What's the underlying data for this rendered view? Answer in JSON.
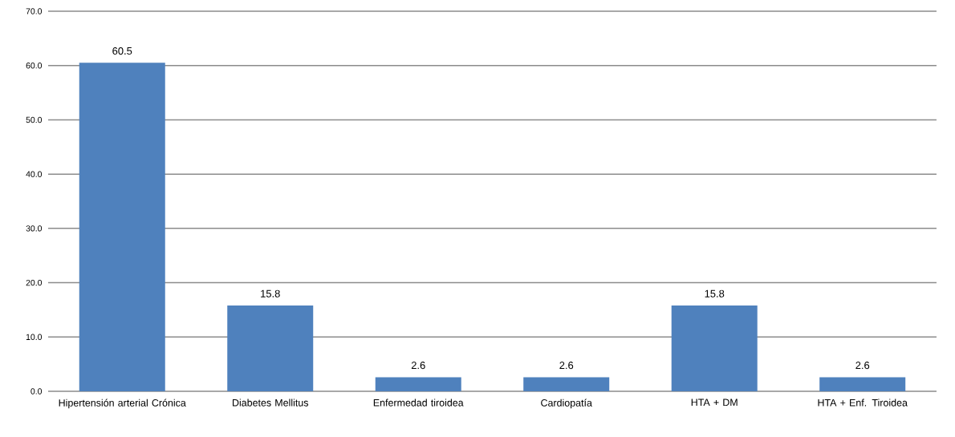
{
  "chart_data": {
    "type": "bar",
    "categories": [
      "Hipertensión arterial Crónica",
      "Diabetes Mellitus",
      "Enfermedad tiroidea",
      "Cardiopatía",
      "HTA + DM",
      "HTA + Enf. Tiroidea"
    ],
    "values": [
      60.5,
      15.8,
      2.6,
      2.6,
      15.8,
      2.6
    ],
    "color": "#4f81bd",
    "ylim": [
      0,
      70
    ],
    "yticks": [
      {
        "value": 0,
        "label": "0.0"
      },
      {
        "value": 10,
        "label": "10.0"
      },
      {
        "value": 20,
        "label": "20.0"
      },
      {
        "value": 30,
        "label": "30.0"
      },
      {
        "value": 40,
        "label": "40.0"
      },
      {
        "value": 50,
        "label": "50.0"
      },
      {
        "value": 60,
        "label": "60.0"
      },
      {
        "value": 70,
        "label": "70.0"
      }
    ],
    "grid": "y",
    "data_labels": true
  }
}
